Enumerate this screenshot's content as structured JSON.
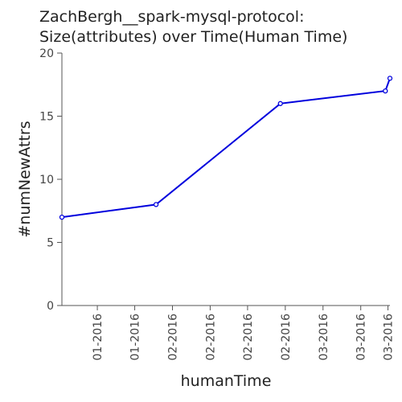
{
  "chart_data": {
    "type": "line",
    "title_lines": [
      "ZachBergh__spark-mysql-protocol:",
      "Size(attributes) over Time(Human Time)"
    ],
    "xlabel": "humanTime",
    "ylabel": "#numNewAttrs",
    "x_range": [
      0,
      100
    ],
    "ylim": [
      0,
      20
    ],
    "y_ticks": [
      0,
      5,
      10,
      15,
      20
    ],
    "x_ticks": [
      {
        "pos": 10.8,
        "label": "01-2016"
      },
      {
        "pos": 22.2,
        "label": "01-2016"
      },
      {
        "pos": 33.7,
        "label": "02-2016"
      },
      {
        "pos": 45.2,
        "label": "02-2016"
      },
      {
        "pos": 56.6,
        "label": "02-2016"
      },
      {
        "pos": 68.1,
        "label": "02-2016"
      },
      {
        "pos": 79.6,
        "label": "03-2016"
      },
      {
        "pos": 91.1,
        "label": "03-2016"
      },
      {
        "pos": 99.4,
        "label": "03-2016"
      }
    ],
    "series": [
      {
        "color": "#0000dd",
        "points": [
          {
            "x": 0.0,
            "y": 7
          },
          {
            "x": 28.7,
            "y": 8
          },
          {
            "x": 66.6,
            "y": 16
          },
          {
            "x": 98.6,
            "y": 17
          },
          {
            "x": 100.0,
            "y": 18
          }
        ]
      }
    ],
    "grid": false
  }
}
